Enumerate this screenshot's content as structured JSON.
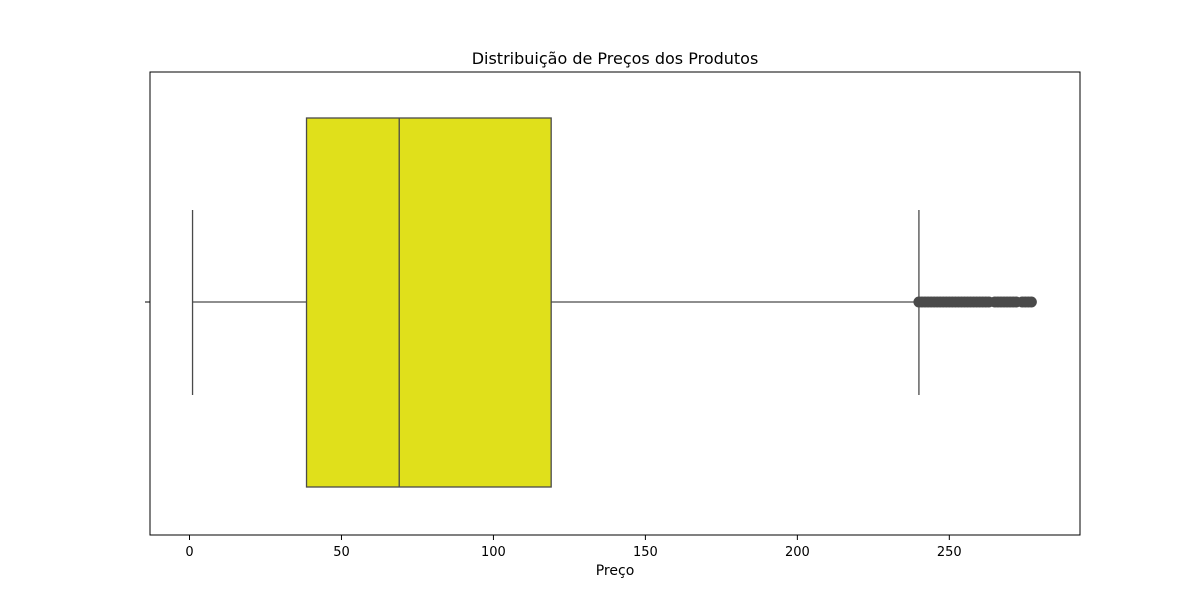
{
  "chart_data": {
    "type": "box",
    "title": "Distribuição de Preços dos Produtos",
    "xlabel": "Preço",
    "ylabel": "",
    "xlim": [
      -13,
      293
    ],
    "xticks": [
      0,
      50,
      100,
      150,
      200,
      250
    ],
    "xtick_labels": [
      "0",
      "50",
      "100",
      "150",
      "200",
      "250"
    ],
    "grid": false,
    "box": {
      "whisker_low": 1,
      "q1": 38.5,
      "median": 69,
      "q3": 119,
      "whisker_high": 240
    },
    "outlier_range": [
      240,
      278
    ],
    "outliers": [
      240,
      241,
      242,
      243,
      244,
      245,
      246,
      247,
      248,
      249,
      250,
      251,
      252,
      253,
      254,
      255,
      256,
      257,
      258,
      259,
      260,
      261,
      262,
      263,
      265,
      266,
      267,
      268,
      269,
      270,
      271,
      272,
      274,
      275,
      276,
      277
    ],
    "colors": {
      "box_fill": "#e0e01b",
      "line": "#4a4a4a",
      "outlier": "#4a4a4a"
    }
  }
}
